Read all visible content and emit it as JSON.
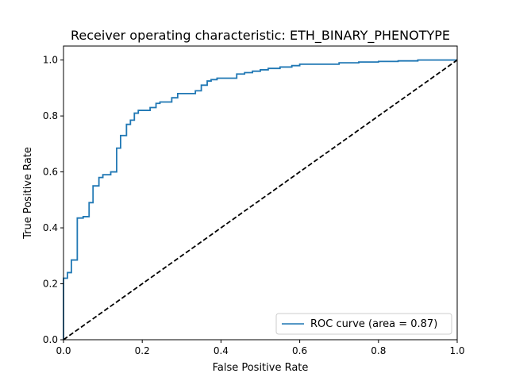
{
  "chart_data": {
    "type": "line",
    "title": "Receiver operating characteristic: ETH_BINARY_PHENOTYPE",
    "xlabel": "False Positive Rate",
    "ylabel": "True Positive Rate",
    "xlim": [
      0.0,
      1.0
    ],
    "ylim": [
      0.0,
      1.05
    ],
    "x_ticks": [
      {
        "value": 0.0,
        "label": "0.0"
      },
      {
        "value": 0.2,
        "label": "0.2"
      },
      {
        "value": 0.4,
        "label": "0.4"
      },
      {
        "value": 0.6,
        "label": "0.6"
      },
      {
        "value": 0.8,
        "label": "0.8"
      },
      {
        "value": 1.0,
        "label": "1.0"
      }
    ],
    "y_ticks": [
      {
        "value": 0.0,
        "label": "0.0"
      },
      {
        "value": 0.2,
        "label": "0.2"
      },
      {
        "value": 0.4,
        "label": "0.4"
      },
      {
        "value": 0.6,
        "label": "0.6"
      },
      {
        "value": 0.8,
        "label": "0.8"
      },
      {
        "value": 1.0,
        "label": "1.0"
      }
    ],
    "grid": false,
    "legend_position": "lower-right",
    "series": [
      {
        "name": "ROC curve (area = 0.87)",
        "color": "#1f77b4",
        "style": "solid",
        "x": [
          0.0,
          0.0,
          0.01,
          0.01,
          0.02,
          0.02,
          0.035,
          0.035,
          0.05,
          0.05,
          0.065,
          0.065,
          0.075,
          0.075,
          0.09,
          0.09,
          0.1,
          0.1,
          0.12,
          0.12,
          0.135,
          0.135,
          0.145,
          0.145,
          0.16,
          0.16,
          0.17,
          0.17,
          0.18,
          0.18,
          0.19,
          0.19,
          0.22,
          0.22,
          0.235,
          0.235,
          0.245,
          0.245,
          0.275,
          0.275,
          0.29,
          0.29,
          0.335,
          0.335,
          0.35,
          0.35,
          0.365,
          0.365,
          0.375,
          0.375,
          0.39,
          0.39,
          0.44,
          0.44,
          0.46,
          0.46,
          0.48,
          0.48,
          0.5,
          0.5,
          0.52,
          0.52,
          0.55,
          0.55,
          0.58,
          0.58,
          0.6,
          0.6,
          0.7,
          0.7,
          0.75,
          0.75,
          0.8,
          0.8,
          0.85,
          0.85,
          0.9,
          0.9,
          1.0
        ],
        "y": [
          0.0,
          0.22,
          0.22,
          0.24,
          0.24,
          0.285,
          0.285,
          0.435,
          0.435,
          0.44,
          0.44,
          0.49,
          0.49,
          0.55,
          0.55,
          0.58,
          0.58,
          0.59,
          0.59,
          0.6,
          0.6,
          0.685,
          0.685,
          0.73,
          0.73,
          0.77,
          0.77,
          0.785,
          0.785,
          0.81,
          0.81,
          0.82,
          0.82,
          0.83,
          0.83,
          0.845,
          0.845,
          0.85,
          0.85,
          0.865,
          0.865,
          0.88,
          0.88,
          0.89,
          0.89,
          0.91,
          0.91,
          0.925,
          0.925,
          0.93,
          0.93,
          0.935,
          0.935,
          0.95,
          0.95,
          0.955,
          0.955,
          0.96,
          0.96,
          0.965,
          0.965,
          0.97,
          0.97,
          0.975,
          0.975,
          0.98,
          0.98,
          0.985,
          0.985,
          0.99,
          0.99,
          0.993,
          0.993,
          0.995,
          0.995,
          0.997,
          0.997,
          1.0,
          1.0
        ]
      },
      {
        "name": "",
        "color": "#000000",
        "style": "dashed",
        "x": [
          0.0,
          1.0
        ],
        "y": [
          0.0,
          1.0
        ]
      }
    ]
  }
}
